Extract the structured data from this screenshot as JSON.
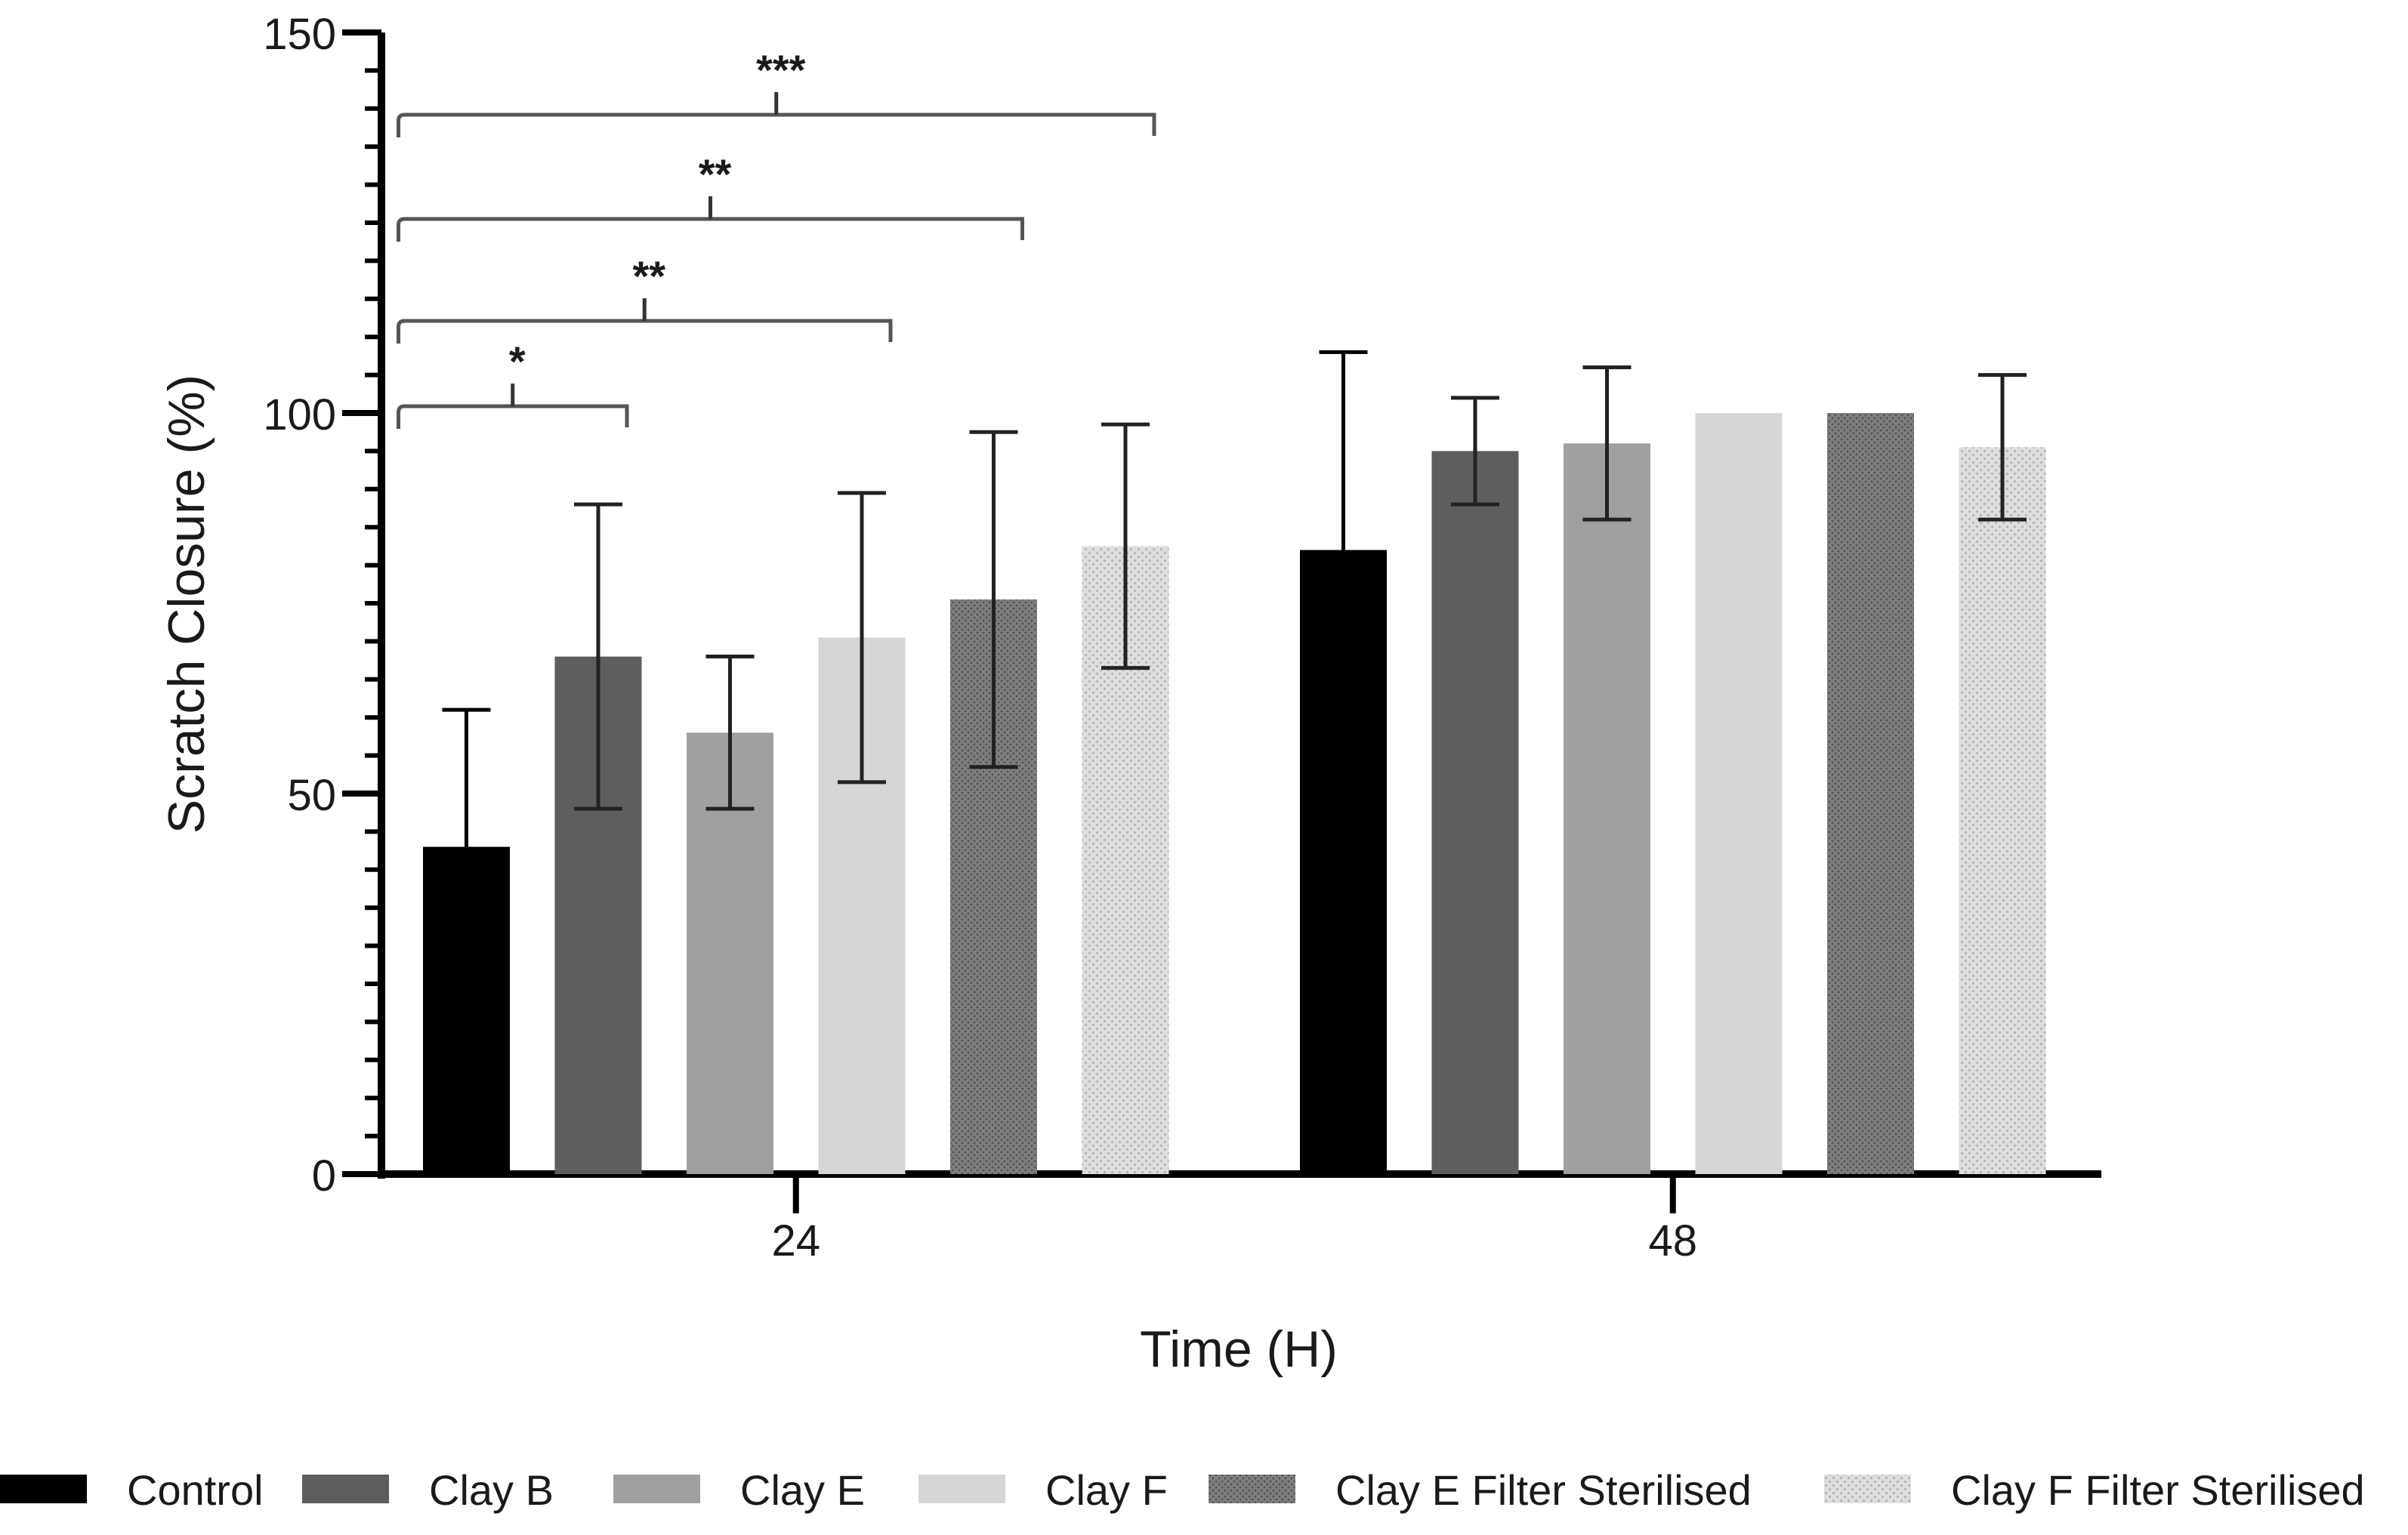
{
  "chart_data": {
    "type": "bar",
    "title": "",
    "xlabel": "Time (H)",
    "ylabel": "Scratch Closure (%)",
    "ylim": [
      0,
      150
    ],
    "yticks": [
      0,
      50,
      100,
      150
    ],
    "categories": [
      "24",
      "48"
    ],
    "series": [
      {
        "name": "Control",
        "values": [
          43,
          82
        ],
        "errors": [
          18,
          26
        ],
        "color": "#000000",
        "pattern": "solid"
      },
      {
        "name": "Clay B",
        "values": [
          68,
          95
        ],
        "errors": [
          20,
          7
        ],
        "color": "#5e5e5e",
        "pattern": "solid"
      },
      {
        "name": "Clay E",
        "values": [
          58,
          96
        ],
        "errors": [
          10,
          10
        ],
        "color": "#a0a0a2",
        "pattern": "solid"
      },
      {
        "name": "Clay F",
        "values": [
          70.5,
          100
        ],
        "errors": [
          19,
          0
        ],
        "color": "#d6d6d6",
        "pattern": "solid"
      },
      {
        "name": "Clay E Filter Sterilised",
        "values": [
          75.5,
          100
        ],
        "errors": [
          22,
          0
        ],
        "color": "#808082",
        "pattern": "dots-dense"
      },
      {
        "name": "Clay F Filter Sterilised",
        "values": [
          82.5,
          95.5
        ],
        "errors": [
          16,
          9.5
        ],
        "color": "#d9d9d9",
        "pattern": "dots-light"
      }
    ],
    "significance": [
      {
        "from": "Control",
        "to": "Clay B",
        "category": "24",
        "label": "*"
      },
      {
        "from": "Control",
        "to": "Clay F",
        "category": "24",
        "label": "**"
      },
      {
        "from": "Control",
        "to": "Clay E Filter Sterilised",
        "category": "24",
        "label": "**"
      },
      {
        "from": "Control",
        "to": "Clay F Filter Sterilised",
        "category": "24",
        "label": "***"
      }
    ],
    "legend_position": "bottom"
  }
}
